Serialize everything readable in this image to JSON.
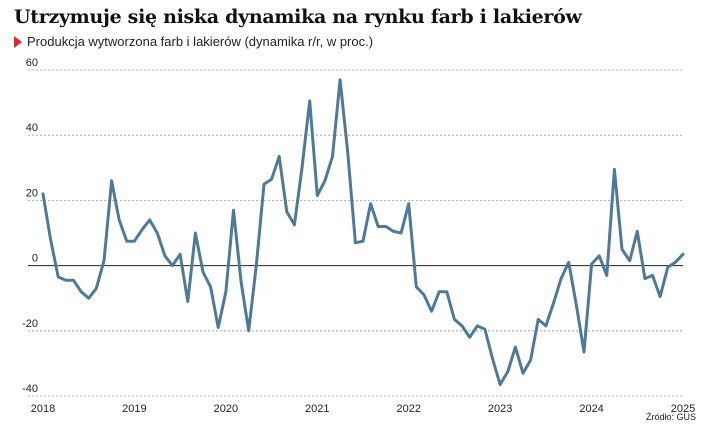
{
  "title": "Utrzymuje się niska dynamika na rynku farb i lakierów",
  "subtitle": "Produkcja wytworzona farb i lakierów (dynamika r/r, w proc.)",
  "source": "Źródło: GUS",
  "colors": {
    "line": "#4e7a99",
    "accent": "#e3262c",
    "grid": "#9a9a9a",
    "zero_line": "#222222"
  },
  "chart_data": {
    "type": "line",
    "title": "Utrzymuje się niska dynamika na rynku farb i lakierów",
    "subtitle": "Produkcja wytworzona farb i lakierów (dynamika r/r, w proc.)",
    "xlabel": "",
    "ylabel": "",
    "ylim": [
      -40,
      60
    ],
    "xlim": [
      "2018-01",
      "2025-01"
    ],
    "yticks": [
      -40,
      -20,
      0,
      20,
      40,
      60
    ],
    "ytick_labels": [
      "-40",
      "-20",
      "0",
      "20",
      "40",
      "60"
    ],
    "xtick_labels": [
      "2018",
      "2019",
      "2020",
      "2021",
      "2022",
      "2023",
      "2024",
      "2025"
    ],
    "grid": "horizontal dashed",
    "series": [
      {
        "color": "#4e7a99",
        "x": [
          "2018-01",
          "2018-02",
          "2018-03",
          "2018-04",
          "2018-05",
          "2018-06",
          "2018-07",
          "2018-08",
          "2018-09",
          "2018-10",
          "2018-11",
          "2018-12",
          "2019-01",
          "2019-02",
          "2019-03",
          "2019-04",
          "2019-05",
          "2019-06",
          "2019-07",
          "2019-08",
          "2019-09",
          "2019-10",
          "2019-11",
          "2019-12",
          "2020-01",
          "2020-02",
          "2020-03",
          "2020-04",
          "2020-05",
          "2020-06",
          "2020-07",
          "2020-08",
          "2020-09",
          "2020-10",
          "2020-11",
          "2020-12",
          "2021-01",
          "2021-02",
          "2021-03",
          "2021-04",
          "2021-05",
          "2021-06",
          "2021-07",
          "2021-08",
          "2021-09",
          "2021-10",
          "2021-11",
          "2021-12",
          "2022-01",
          "2022-02",
          "2022-03",
          "2022-04",
          "2022-05",
          "2022-06",
          "2022-07",
          "2022-08",
          "2022-09",
          "2022-10",
          "2022-11",
          "2022-12",
          "2023-01",
          "2023-02",
          "2023-03",
          "2023-04",
          "2023-05",
          "2023-06",
          "2023-07",
          "2023-08",
          "2023-09",
          "2023-10",
          "2023-11",
          "2023-12",
          "2024-01",
          "2024-02",
          "2024-03",
          "2024-04",
          "2024-05",
          "2024-06",
          "2024-07",
          "2024-08",
          "2024-09",
          "2024-10",
          "2024-11",
          "2024-12",
          "2025-01"
        ],
        "y": [
          22,
          8,
          -3.5,
          -4.5,
          -4.5,
          -8,
          -10,
          -7,
          1.5,
          26,
          14,
          7.5,
          7.5,
          11,
          14,
          10,
          3,
          0,
          3.5,
          -11,
          10,
          -2,
          -6.5,
          -19,
          -8,
          17,
          -5,
          -20,
          0,
          25,
          26.5,
          33.5,
          16.5,
          12.5,
          30,
          50.5,
          21.5,
          26,
          33.5,
          57,
          34.5,
          7,
          7.5,
          19,
          12,
          12,
          10.5,
          10,
          19,
          -6.5,
          -9,
          -14,
          -8,
          -8,
          -16.5,
          -18.5,
          -22,
          -18.5,
          -19.5,
          -28.5,
          -36.5,
          -32.5,
          -25,
          -33,
          -29,
          -16.5,
          -18.5,
          -11.5,
          -4,
          1,
          -12,
          -26.5,
          0.5,
          3,
          -3,
          29.5,
          5,
          1.5,
          10.5,
          -4,
          -3,
          -9.5,
          -0.5,
          1,
          3.5
        ]
      }
    ]
  }
}
